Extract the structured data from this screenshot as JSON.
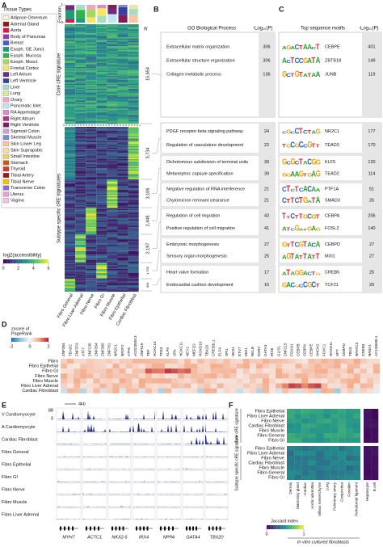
{
  "panel_a": {
    "label": "A",
    "legend_title": "Tissue Types",
    "tissues": [
      {
        "name": "Adipose Omentum",
        "color": "#fbf3dc"
      },
      {
        "name": "Adrenal Gland",
        "color": "#8c1c13"
      },
      {
        "name": "Aorta",
        "color": "#e0144c"
      },
      {
        "name": "Body of Pancreas",
        "color": "#8e3fa1"
      },
      {
        "name": "Breast",
        "color": "#4b5cc4"
      },
      {
        "name": "Esoph. GE Junct.",
        "color": "#1a9e77"
      },
      {
        "name": "Esoph. Mucosa",
        "color": "#33b24a"
      },
      {
        "name": "Esoph. Muscl.",
        "color": "#a7d763"
      },
      {
        "name": "Frontal Cortex",
        "color": "#f5e663"
      },
      {
        "name": "Left Atrium",
        "color": "#6d2c7f"
      },
      {
        "name": "Left Ventricle",
        "color": "#3b3f9e"
      },
      {
        "name": "Liver",
        "color": "#a8dcc4"
      },
      {
        "name": "Lung",
        "color": "#d9e8a0"
      },
      {
        "name": "Ovary",
        "color": "#f4a3c0"
      },
      {
        "name": "Pancreatic Islet",
        "color": "#bfe6f2"
      },
      {
        "name": "RA Appendage",
        "color": "#d98ec2"
      },
      {
        "name": "Right Atrium",
        "color": "#b3358a"
      },
      {
        "name": "Right Ventricle",
        "color": "#7f1f5a"
      },
      {
        "name": "Sigmoid Colon",
        "color": "#c9a0dc"
      },
      {
        "name": "Skeletal Muscle",
        "color": "#7a8cc9"
      },
      {
        "name": "Skin Lower Leg",
        "color": "#f7c8a0"
      },
      {
        "name": "Skin Suprapubic",
        "color": "#f0e0b0"
      },
      {
        "name": "Small Intestine",
        "color": "#e8d36a"
      },
      {
        "name": "Stomach",
        "color": "#c45a1b"
      },
      {
        "name": "Thyroid",
        "color": "#d43a2f"
      },
      {
        "name": "Tibial Artery",
        "color": "#a31515"
      },
      {
        "name": "Tibial Nerve",
        "color": "#f2c500"
      },
      {
        "name": "Transverse Colon",
        "color": "#8f6bd1"
      },
      {
        "name": "Uterus",
        "color": "#e6a2d6"
      },
      {
        "name": "Vagina",
        "color": "#f5c2e0"
      }
    ],
    "fraction_label": "Fraction",
    "fraction_ticks": [
      0,
      1
    ],
    "colorbar_title": "log2(accessibility)",
    "colorbar_ticks": [
      0,
      2,
      4,
      6
    ],
    "n_label": "N",
    "core_label": "Core cRE signature",
    "subtype_label": "Subtype specific cRE signatures",
    "columns": [
      "Fibro General",
      "Fibro Liver Adrenal",
      "Fibro Nerve",
      "Fibro GI",
      "Fibro Muscle",
      "Fibro Epithelial",
      "Cardiac Fibroblast"
    ],
    "counts": [
      "15,654",
      "3,734",
      "3,106",
      "2,448",
      "2,197",
      "1,705",
      "981"
    ]
  },
  "panel_b": {
    "label": "B",
    "title": "GO Biological Process",
    "p_label": "-Log₁₀(P)",
    "groups": [
      [
        {
          "term": "Extracellular matrix organization",
          "p": 306
        },
        {
          "term": "Extracellular structure organization",
          "p": 306
        },
        {
          "term": "Collagen metabolic process",
          "p": 136
        }
      ],
      [
        {
          "term": "PDGF receptor-beta signaling pathway",
          "p": 24
        },
        {
          "term": "Regulation of vasculature development",
          "p": 22
        }
      ],
      [
        {
          "term": "Dichotomous subdivision of terminal units",
          "p": 39
        },
        {
          "term": "Metanephric capsule specification",
          "p": 39
        }
      ],
      [
        {
          "term": "Negative regulation of RNA interference",
          "p": 21
        },
        {
          "term": "Chylomicron remnant clearance",
          "p": 21
        }
      ],
      [
        {
          "term": "Regulation of cell migration",
          "p": 43
        },
        {
          "term": "Positive regulation of cell migration",
          "p": 41
        }
      ],
      [
        {
          "term": "Embryonic morphogenesis",
          "p": 27
        },
        {
          "term": "Sensory organ morphogenesis",
          "p": 25
        }
      ],
      [
        {
          "term": "Heart valve formation",
          "p": 17
        },
        {
          "term": "Endocardial cushion development",
          "p": 16
        }
      ]
    ]
  },
  "panel_c": {
    "label": "C",
    "title": "Top sequence motifs",
    "p_label": "-Log₁₀(P)",
    "groups": [
      [
        {
          "tf": "CEBPE",
          "p": 401
        },
        {
          "tf": "ZBTB18",
          "p": 149
        },
        {
          "tf": "JUNB",
          "p": 119
        }
      ],
      [
        {
          "tf": "NR2C1",
          "p": 177
        },
        {
          "tf": "TEAD3",
          "p": 170
        }
      ],
      [
        {
          "tf": "KLF5",
          "p": 120
        },
        {
          "tf": "TEAD2",
          "p": 114
        }
      ],
      [
        {
          "tf": "PTF1A",
          "p": 51
        },
        {
          "tf": "SMAD3",
          "p": 26
        }
      ],
      [
        {
          "tf": "CEBPA",
          "p": 206
        },
        {
          "tf": "FOSL2",
          "p": 140
        }
      ],
      [
        {
          "tf": "CEBPD",
          "p": 27
        },
        {
          "tf": "MXI1",
          "p": 27
        }
      ],
      [
        {
          "tf": "CREB5",
          "p": 25
        },
        {
          "tf": "TCF21",
          "p": 20
        }
      ]
    ]
  },
  "panel_d": {
    "label": "D",
    "colorbar_title": [
      "zscore of",
      "PageRank"
    ],
    "colorbar_ticks": [
      -2,
      0,
      2
    ],
    "rows": [
      "Fibro",
      "Fibro Epithelial",
      "Fibro GI",
      "Fibro Nerve",
      "Fibro Muscle",
      "Fibro Liver Adrenal",
      "Cardiac Fibroblast"
    ],
    "columns": [
      "ZNF384",
      "TEAD2",
      "ZNF37A",
      "ATF7",
      "ZNF235",
      "ZNF354",
      "ZNF365",
      "ZNF701",
      "NR2C1",
      "NR2F2",
      "ATF6",
      "AC023509.3",
      "ZNF516",
      "TEF",
      "HOXC10",
      "TFE3",
      "KLF9",
      "XPA",
      "HOXC11",
      "HEY2",
      "MEF2D",
      "HOXD10",
      "TBX20",
      "CREB3L1",
      "ELF4",
      "SPI1",
      "HES1",
      "ETV7",
      "MXI1",
      "RELB",
      "ESR2",
      "GATA3",
      "IRX6",
      "GLIS1",
      "ZNF215",
      "FOXO1",
      "CEBPB",
      "CEBPA",
      "CEBPE",
      "SHOX2",
      "FOXC1",
      "HOXD11",
      "SP7",
      "CEBPD",
      "TBX3",
      "NFATC3",
      "CREB3",
      "NR4A1",
      "AC136698.1"
    ]
  },
  "panel_e": {
    "label": "E",
    "scale_max": "88",
    "scale_min": "0",
    "scale_bar": "4kb",
    "tracks": [
      "V Cardiomyocyte",
      "A Cardiomyocyte",
      "Cardiac Fibroblast",
      "Fibro General",
      "Fibro Epithelial",
      "Fibro GI",
      "Fibro Nerve",
      "Fibro Muscle",
      "Fibro Liver Adrenal"
    ],
    "genes": [
      "MYH7",
      "ACTC1",
      "NKX2-5",
      "IRX4",
      "NPPA",
      "GATA4",
      "TBX20"
    ]
  },
  "panel_f": {
    "label": "F",
    "core_label": "Core cRE signature",
    "subtype_label": "Subtype specific cRE signature",
    "rows": [
      "Fibro Epithelial",
      "Fibro Liver Adrenal",
      "Fibro Nerve",
      "Cardiac Fibroblast",
      "Fibro Muscle",
      "Fibro General",
      "Fibro GI"
    ],
    "columns": [
      "Dermis",
      "Mammary gland",
      "Cardiac",
      "Aortic adventitia",
      "Villous mesenchyme",
      "Lung",
      "Pulmonary artery",
      "Conjunctiva",
      "Foreskin",
      "Periodontal ligament",
      "Hepatocyte",
      "B cell"
    ],
    "colorbar_title": "Jaccard index",
    "colorbar_ticks": [
      0,
      1
    ],
    "footer": "In vitro cultured fibroblasts"
  }
}
